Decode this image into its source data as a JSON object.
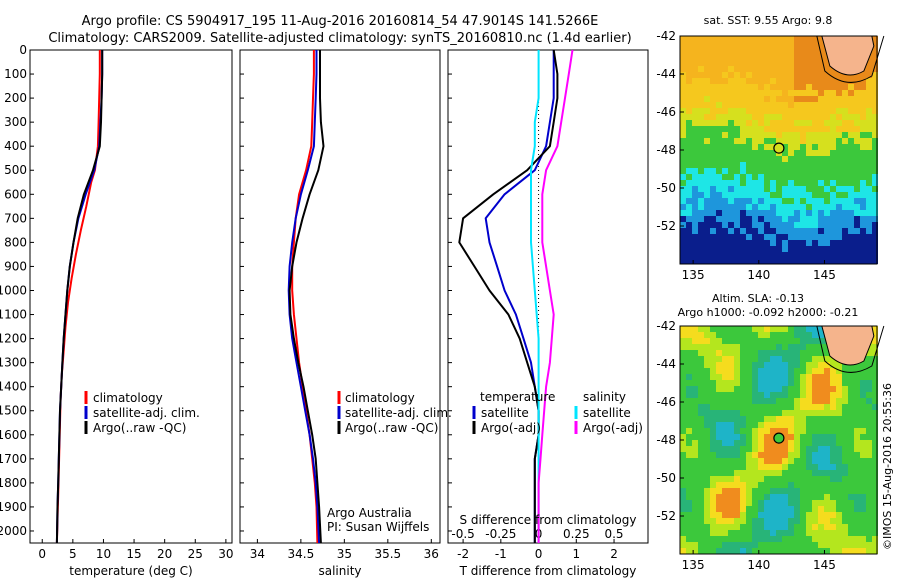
{
  "header": {
    "line1": "Argo profile: CS 5904917_195 11-Aug-2016 20160814_54 47.9014S 141.5266E",
    "line2": "Climatology: CARS2009. Satellite-adjusted climatology: synTS_20160810.nc (1.4d earlier)"
  },
  "colors": {
    "climatology": "#ff0000",
    "satellite": "#0000cc",
    "argo": "#000000",
    "sat_cyan": "#00e5ff",
    "argo_adj_magenta": "#ff00ff"
  },
  "chart_data": [
    {
      "type": "line",
      "id": "temperature",
      "xlabel": "temperature (deg C)",
      "xlim": [
        -2,
        31
      ],
      "ylim": [
        2050,
        0
      ],
      "xticks": [
        0,
        5,
        10,
        15,
        20,
        25,
        30
      ],
      "yticks": [
        0,
        100,
        200,
        300,
        400,
        500,
        600,
        700,
        800,
        900,
        1000,
        1100,
        1200,
        1300,
        1400,
        1500,
        1600,
        1700,
        1800,
        1900,
        2000
      ],
      "legend": [
        "climatology",
        "satellite-adj. clim.",
        "Argo(..raw -QC)"
      ],
      "series": [
        {
          "name": "climatology",
          "color": "#ff0000",
          "x": [
            9.4,
            9.4,
            9.3,
            9.2,
            9.1,
            8.6,
            8.0,
            7.2,
            6.3,
            5.5,
            4.8,
            4.2,
            3.8,
            3.5,
            3.2,
            3.0,
            2.9,
            2.8,
            2.7,
            2.6,
            2.5,
            2.4
          ],
          "y": [
            0,
            100,
            200,
            300,
            400,
            500,
            550,
            650,
            750,
            850,
            950,
            1050,
            1150,
            1250,
            1350,
            1450,
            1550,
            1650,
            1750,
            1850,
            1950,
            2050
          ]
        },
        {
          "name": "satellite-adj. clim.",
          "color": "#0000cc",
          "x": [
            9.8,
            9.8,
            9.7,
            9.5,
            9.3,
            8.5,
            7.1,
            5.9,
            5.1,
            4.5,
            4.1,
            3.8,
            3.5,
            3.3,
            3.1,
            2.9,
            2.8,
            2.7,
            2.6,
            2.5,
            2.4
          ],
          "y": [
            0,
            100,
            200,
            300,
            400,
            500,
            600,
            700,
            800,
            900,
            1000,
            1100,
            1200,
            1300,
            1400,
            1500,
            1600,
            1700,
            1800,
            1900,
            2050
          ]
        },
        {
          "name": "Argo(..raw -QC)",
          "color": "#000000",
          "x": [
            9.8,
            9.8,
            9.7,
            9.6,
            9.4,
            8.3,
            6.8,
            5.8,
            5.1,
            4.5,
            4.1,
            3.8,
            3.5,
            3.3,
            3.1,
            2.9,
            2.8,
            2.7,
            2.6,
            2.5,
            2.4
          ],
          "y": [
            0,
            100,
            200,
            300,
            400,
            500,
            600,
            700,
            800,
            900,
            1000,
            1100,
            1200,
            1300,
            1400,
            1500,
            1600,
            1700,
            1800,
            1900,
            2050
          ]
        }
      ]
    },
    {
      "type": "line",
      "id": "salinity",
      "xlabel": "salinity",
      "xlim": [
        33.8,
        36.1
      ],
      "ylim": [
        2050,
        0
      ],
      "xticks": [
        34,
        34.5,
        35,
        35.5,
        36
      ],
      "legend": [
        "climatology",
        "satellite-adj. clim.",
        "Argo(..raw -QC)"
      ],
      "annotation": [
        "Argo Australia",
        "PI: Susan Wijffels"
      ],
      "series": [
        {
          "name": "climatology",
          "color": "#ff0000",
          "x": [
            34.65,
            34.65,
            34.64,
            34.63,
            34.62,
            34.56,
            34.48,
            34.44,
            34.42,
            34.4,
            34.4,
            34.42,
            34.45,
            34.48,
            34.52,
            34.56,
            34.6,
            34.63,
            34.66,
            34.68,
            34.69
          ],
          "y": [
            0,
            100,
            200,
            300,
            400,
            500,
            600,
            700,
            800,
            900,
            1000,
            1100,
            1200,
            1300,
            1400,
            1500,
            1600,
            1700,
            1800,
            1900,
            2050
          ]
        },
        {
          "name": "satellite-adj. clim.",
          "color": "#0000cc",
          "x": [
            34.68,
            34.68,
            34.67,
            34.66,
            34.65,
            34.58,
            34.5,
            34.44,
            34.4,
            34.37,
            34.36,
            34.37,
            34.4,
            34.45,
            34.5,
            34.55,
            34.6,
            34.64,
            34.67,
            34.69,
            34.71
          ],
          "y": [
            0,
            100,
            200,
            300,
            400,
            500,
            600,
            700,
            800,
            900,
            1000,
            1100,
            1200,
            1300,
            1400,
            1500,
            1600,
            1700,
            1800,
            1900,
            2050
          ]
        },
        {
          "name": "Argo(..raw -QC)",
          "color": "#000000",
          "x": [
            34.72,
            34.72,
            34.72,
            34.73,
            34.76,
            34.7,
            34.6,
            34.52,
            34.45,
            34.4,
            34.37,
            34.38,
            34.42,
            34.47,
            34.53,
            34.58,
            34.63,
            34.67,
            34.69,
            34.71,
            34.73
          ],
          "y": [
            0,
            100,
            200,
            300,
            400,
            500,
            600,
            700,
            800,
            900,
            1000,
            1100,
            1200,
            1300,
            1400,
            1500,
            1600,
            1700,
            1800,
            1900,
            2050
          ]
        }
      ]
    },
    {
      "type": "line",
      "id": "difference",
      "xlabel": "T difference from climatology",
      "xlabel_top": "S difference from climatology",
      "xlim": [
        -2.4,
        2.9
      ],
      "ylim": [
        2050,
        0
      ],
      "xticks": [
        -2,
        -1,
        0,
        1,
        2
      ],
      "xticks_top": [
        -0.5,
        -0.25,
        0,
        0.25,
        0.5
      ],
      "legend_temperature": {
        "title": "temperature",
        "items": [
          "satellite",
          "Argo(-adj)"
        ]
      },
      "legend_salinity": {
        "title": "salinity",
        "items": [
          "satellite",
          "Argo(-adj)"
        ]
      },
      "series": [
        {
          "name": "temperature satellite",
          "color": "#0000cc",
          "x": [
            0.4,
            0.4,
            0.4,
            0.3,
            0.2,
            -0.1,
            -0.9,
            -1.4,
            -1.3,
            -1.1,
            -0.9,
            -0.6,
            -0.4,
            -0.2,
            -0.1,
            0.0,
            0.0,
            -0.1,
            -0.1,
            -0.1,
            -0.1
          ],
          "y": [
            0,
            100,
            200,
            300,
            400,
            500,
            600,
            700,
            800,
            900,
            1000,
            1100,
            1200,
            1300,
            1400,
            1500,
            1600,
            1700,
            1800,
            1900,
            2050
          ]
        },
        {
          "name": "temperature Argo(-adj)",
          "color": "#000000",
          "x": [
            0.4,
            0.5,
            0.5,
            0.4,
            0.3,
            -0.3,
            -1.2,
            -2.0,
            -2.1,
            -1.7,
            -1.3,
            -0.8,
            -0.5,
            -0.3,
            -0.1,
            0.0,
            0.0,
            -0.1,
            -0.1,
            -0.1,
            -0.1
          ],
          "y": [
            0,
            100,
            200,
            300,
            400,
            500,
            600,
            700,
            800,
            900,
            1000,
            1100,
            1200,
            1300,
            1400,
            1500,
            1600,
            1700,
            1800,
            1900,
            2050
          ]
        },
        {
          "name": "salinity satellite",
          "color": "#00e5ff",
          "x": [
            0.0,
            0.0,
            0.0,
            -0.1,
            -0.1,
            -0.2,
            -0.2,
            -0.2,
            -0.2,
            -0.15,
            -0.1,
            -0.05,
            0.0,
            0.0,
            0.0,
            0.0,
            0.0,
            0.0,
            0.0,
            0.0,
            0.0
          ],
          "y": [
            0,
            100,
            200,
            300,
            400,
            500,
            600,
            700,
            800,
            900,
            1000,
            1100,
            1200,
            1300,
            1400,
            1500,
            1600,
            1700,
            1800,
            1900,
            2050
          ]
        },
        {
          "name": "salinity Argo(-adj)",
          "color": "#ff00ff",
          "x": [
            0.9,
            0.8,
            0.7,
            0.6,
            0.5,
            0.2,
            0.1,
            0.1,
            0.1,
            0.2,
            0.3,
            0.4,
            0.35,
            0.3,
            0.2,
            0.15,
            0.1,
            0.05,
            0.0,
            0.0,
            0.0
          ],
          "y": [
            0,
            100,
            200,
            300,
            400,
            500,
            600,
            700,
            800,
            900,
            1000,
            1100,
            1200,
            1300,
            1400,
            1500,
            1600,
            1700,
            1800,
            1900,
            2050
          ]
        }
      ]
    },
    {
      "type": "heatmap",
      "id": "sst-map",
      "title": "sat. SST: 9.55 Argo: 9.8",
      "xlim": [
        134,
        149
      ],
      "ylim": [
        -54,
        -42
      ],
      "xticks": [
        135,
        140,
        145
      ],
      "yticks": [
        -42,
        -44,
        -46,
        -48,
        -50,
        -52
      ],
      "marker": {
        "lon": 141.53,
        "lat": -47.9
      }
    },
    {
      "type": "heatmap",
      "id": "sla-map",
      "title": "Altim. SLA: -0.13",
      "subtitle": "Argo h1000: -0.092 h2000: -0.21",
      "xlim": [
        134,
        149
      ],
      "ylim": [
        -54,
        -42
      ],
      "xticks": [
        135,
        140,
        145
      ],
      "yticks": [
        -42,
        -44,
        -46,
        -48,
        -50,
        -52
      ],
      "marker": {
        "lon": 141.53,
        "lat": -47.9
      }
    }
  ],
  "watermark": "©IMOS 15-Aug-2016 20:55:36"
}
